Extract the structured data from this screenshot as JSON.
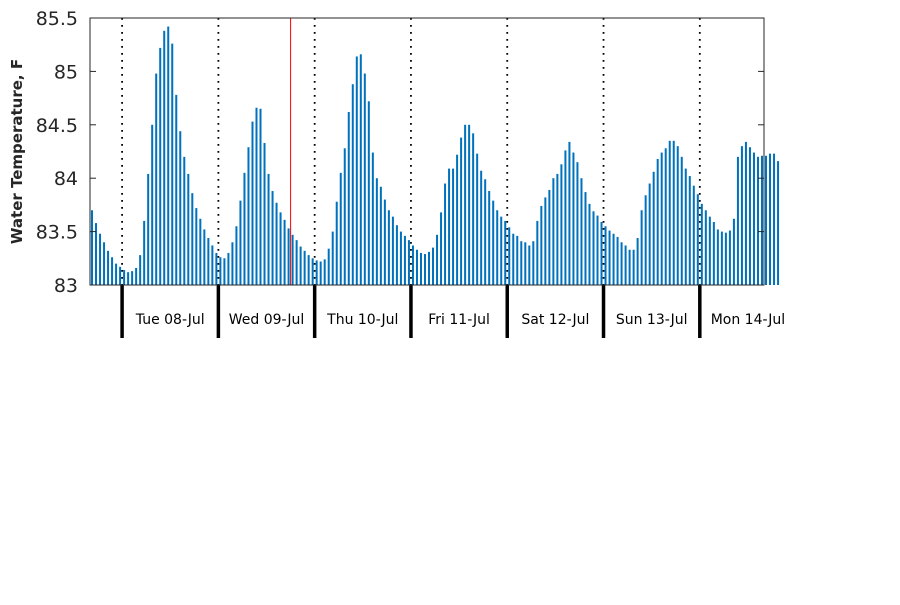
{
  "chart_data": {
    "type": "bar",
    "title": "",
    "xlabel": "",
    "ylabel": "Water Temperature, F",
    "ylim": [
      83,
      85.5
    ],
    "yticks": [
      {
        "value": 83,
        "label": "83"
      },
      {
        "value": 83.5,
        "label": "83.5"
      },
      {
        "value": 84,
        "label": "84"
      },
      {
        "value": 84.5,
        "label": "84.5"
      },
      {
        "value": 85,
        "label": "85"
      },
      {
        "value": 85.5,
        "label": "85.5"
      }
    ],
    "bar_color": "#0072BD",
    "marker_color": "#FF0000",
    "divider_color": "#000000",
    "grid": false,
    "x_unit": "hours from start of record",
    "xlim": [
      0,
      167
    ],
    "current_time_marker_hour": 50,
    "day_boundaries": [
      {
        "hour": 8,
        "label": "Tue 08-Jul"
      },
      {
        "hour": 32,
        "label": "Wed 09-Jul"
      },
      {
        "hour": 56,
        "label": "Thu 10-Jul"
      },
      {
        "hour": 80,
        "label": "Fri 11-Jul"
      },
      {
        "hour": 104,
        "label": "Sat 12-Jul"
      },
      {
        "hour": 128,
        "label": "Sun 13-Jul"
      },
      {
        "hour": 152,
        "label": "Mon 14-Jul"
      }
    ],
    "values": [
      83.7,
      83.58,
      83.48,
      83.4,
      83.32,
      83.26,
      83.2,
      83.17,
      83.14,
      83.12,
      83.13,
      83.16,
      83.28,
      83.6,
      84.04,
      84.5,
      84.98,
      85.22,
      85.38,
      85.42,
      85.26,
      84.78,
      84.44,
      84.2,
      84.04,
      83.86,
      83.72,
      83.62,
      83.52,
      83.44,
      83.37,
      83.3,
      83.26,
      83.25,
      83.3,
      83.4,
      83.55,
      83.79,
      84.05,
      84.29,
      84.53,
      84.66,
      84.65,
      84.33,
      84.04,
      83.88,
      83.77,
      83.68,
      83.61,
      83.53,
      83.47,
      83.42,
      83.36,
      83.32,
      83.28,
      83.25,
      83.23,
      83.22,
      83.24,
      83.34,
      83.5,
      83.78,
      84.05,
      84.28,
      84.62,
      84.88,
      85.14,
      85.16,
      84.98,
      84.72,
      84.24,
      84.0,
      83.92,
      83.8,
      83.7,
      83.64,
      83.56,
      83.5,
      83.46,
      83.42,
      83.37,
      83.33,
      83.3,
      83.29,
      83.31,
      83.35,
      83.47,
      83.68,
      83.95,
      84.09,
      84.09,
      84.22,
      84.38,
      84.5,
      84.5,
      84.42,
      84.23,
      84.07,
      83.99,
      83.88,
      83.79,
      83.7,
      83.64,
      83.6,
      83.54,
      83.48,
      83.46,
      83.41,
      83.4,
      83.37,
      83.41,
      83.6,
      83.74,
      83.82,
      83.89,
      84.0,
      84.04,
      84.13,
      84.26,
      84.34,
      84.24,
      84.15,
      84.0,
      83.87,
      83.76,
      83.69,
      83.65,
      83.59,
      83.55,
      83.51,
      83.48,
      83.45,
      83.4,
      83.37,
      83.33,
      83.33,
      83.44,
      83.7,
      83.84,
      83.95,
      84.06,
      84.18,
      84.24,
      84.28,
      84.35,
      84.35,
      84.3,
      84.2,
      84.09,
      84.02,
      83.93,
      83.85,
      83.76,
      83.7,
      83.64,
      83.59,
      83.52,
      83.5,
      83.49,
      83.51,
      83.62,
      84.2,
      84.3,
      84.34,
      84.29,
      84.24,
      84.2,
      84.21,
      84.21,
      84.23,
      84.23,
      84.16
    ]
  }
}
